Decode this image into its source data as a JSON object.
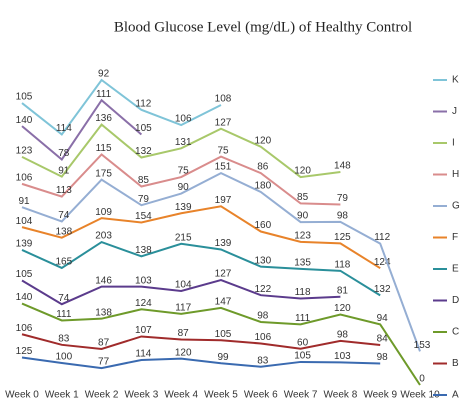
{
  "chart_data": {
    "type": "stacked-line",
    "title": "Blood Glucose Level (mg/dL) of Healthy Control",
    "categories": [
      "Week 0",
      "Week 1",
      "Week 2",
      "Week 3",
      "Week 4",
      "Week 5",
      "Week 6",
      "Week 7",
      "Week 8",
      "Week 9",
      "Week 10"
    ],
    "series": [
      {
        "name": "A",
        "color": "#3a6ab0",
        "values": [
          125,
          100,
          77,
          114,
          120,
          99,
          83,
          105,
          103,
          98,
          null
        ]
      },
      {
        "name": "B",
        "color": "#a02b2b",
        "values": [
          106,
          83,
          87,
          107,
          87,
          105,
          106,
          60,
          98,
          84,
          null
        ]
      },
      {
        "name": "C",
        "color": "#6e9a2a",
        "values": [
          140,
          111,
          138,
          124,
          117,
          147,
          98,
          111,
          120,
          94,
          0
        ]
      },
      {
        "name": "D",
        "color": "#5b3b8c",
        "values": [
          105,
          74,
          146,
          103,
          104,
          127,
          122,
          118,
          81,
          null,
          null
        ]
      },
      {
        "name": "E",
        "color": "#2a8f9a",
        "values": [
          139,
          165,
          203,
          138,
          215,
          139,
          130,
          135,
          118,
          132,
          null
        ]
      },
      {
        "name": "F",
        "color": "#e8832a",
        "values": [
          104,
          138,
          109,
          154,
          139,
          197,
          160,
          123,
          125,
          124,
          null
        ]
      },
      {
        "name": "G",
        "color": "#95aed3",
        "values": [
          91,
          74,
          175,
          79,
          90,
          151,
          180,
          90,
          98,
          112,
          153
        ]
      },
      {
        "name": "H",
        "color": "#d98c8c",
        "values": [
          106,
          113,
          115,
          85,
          75,
          75,
          86,
          85,
          79,
          null,
          null
        ]
      },
      {
        "name": "I",
        "color": "#a8c86a",
        "values": [
          123,
          91,
          136,
          132,
          131,
          127,
          120,
          120,
          148,
          null,
          null
        ]
      },
      {
        "name": "J",
        "color": "#8a6fa8",
        "values": [
          140,
          78,
          111,
          105,
          null,
          null,
          null,
          null,
          null,
          null,
          null
        ]
      },
      {
        "name": "K",
        "color": "#7fc4d8",
        "values": [
          105,
          114,
          92,
          112,
          106,
          108,
          null,
          null,
          null,
          null,
          null
        ]
      }
    ]
  }
}
